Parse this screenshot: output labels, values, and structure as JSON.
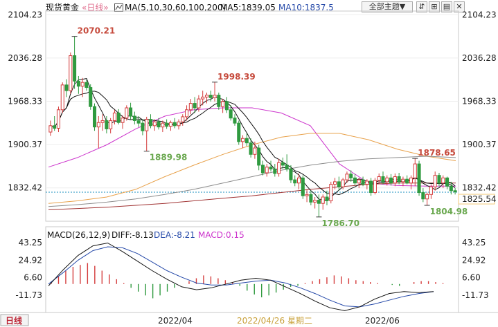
{
  "header": {
    "instrument": "现货黄金",
    "period": "«日线»",
    "ma_icon": "ma-indicator-icon",
    "ma_title": "MA(5,10,30,60,100,200)",
    "ma5": "MA5:1839.05",
    "ma10": "MA10:1837.5",
    "theme_button": "全部主题▼",
    "toolbar_icons": [
      "resize-icon",
      "zoom-in-icon",
      "settings-icon",
      "close-icon"
    ]
  },
  "macd_header": {
    "name": "MACD(26,12,9)",
    "diff": "DIFF:-8.13",
    "dea": "DEA:-8.21",
    "macd": "MACD:0.15"
  },
  "footer": {
    "period_tab": "日线",
    "dates": [
      "2022/04",
      "2022/04/26 星期二",
      "2022/06"
    ]
  },
  "colors": {
    "up": "#d43c3c",
    "down": "#2f9a3f",
    "ma5": "#111111",
    "ma10": "#111111",
    "ma30": "#cc33cc",
    "ma60": "#e8a14a",
    "ma100": "#8c8c8c",
    "ma200": "#a03232",
    "macd_blue": "#2448a8",
    "magenta": "#cc33cc",
    "current_price": "#1a8fbf"
  },
  "chart_data": [
    {
      "type": "candlestick",
      "title": "现货黄金",
      "price_axis_ticks": [
        "2104.23",
        "2036.28",
        "1968.33",
        "1900.37",
        "1832.42"
      ],
      "ylim": [
        1780,
        2110
      ],
      "current_price": 1825.54,
      "current_price_label": "1825.54",
      "annotations": [
        {
          "label": "2070.21",
          "value": 2070.21,
          "kind": "high",
          "index": 6
        },
        {
          "label": "1998.39",
          "value": 1998.39,
          "kind": "high",
          "index": 41
        },
        {
          "label": "1889.98",
          "value": 1889.98,
          "kind": "low",
          "index": 24
        },
        {
          "label": "1786.70",
          "value": 1786.7,
          "kind": "low",
          "index": 67
        },
        {
          "label": "1878.65",
          "value": 1878.65,
          "kind": "high",
          "index": 91
        },
        {
          "label": "1804.98",
          "value": 1804.98,
          "kind": "low",
          "index": 94
        }
      ],
      "candles": [
        {
          "o": 1920,
          "h": 1938,
          "l": 1914,
          "c": 1930
        },
        {
          "o": 1930,
          "h": 1945,
          "l": 1922,
          "c": 1926
        },
        {
          "o": 1926,
          "h": 1960,
          "l": 1920,
          "c": 1955
        },
        {
          "o": 1955,
          "h": 1998,
          "l": 1950,
          "c": 1994
        },
        {
          "o": 1994,
          "h": 2003,
          "l": 1975,
          "c": 1985
        },
        {
          "o": 1985,
          "h": 2045,
          "l": 1980,
          "c": 2040
        },
        {
          "o": 2040,
          "h": 2070.21,
          "l": 1988,
          "c": 2000
        },
        {
          "o": 2000,
          "h": 2008,
          "l": 1980,
          "c": 1992
        },
        {
          "o": 1992,
          "h": 2005,
          "l": 1975,
          "c": 1998
        },
        {
          "o": 1998,
          "h": 2002,
          "l": 1985,
          "c": 1990
        },
        {
          "o": 1990,
          "h": 1995,
          "l": 1955,
          "c": 1960
        },
        {
          "o": 1960,
          "h": 1965,
          "l": 1922,
          "c": 1928
        },
        {
          "o": 1928,
          "h": 1945,
          "l": 1895,
          "c": 1935
        },
        {
          "o": 1935,
          "h": 1948,
          "l": 1922,
          "c": 1938
        },
        {
          "o": 1938,
          "h": 1945,
          "l": 1918,
          "c": 1925
        },
        {
          "o": 1925,
          "h": 1942,
          "l": 1918,
          "c": 1938
        },
        {
          "o": 1938,
          "h": 1955,
          "l": 1932,
          "c": 1950
        },
        {
          "o": 1950,
          "h": 1956,
          "l": 1932,
          "c": 1935
        },
        {
          "o": 1935,
          "h": 1946,
          "l": 1925,
          "c": 1942
        },
        {
          "o": 1942,
          "h": 1962,
          "l": 1938,
          "c": 1958
        },
        {
          "o": 1958,
          "h": 1966,
          "l": 1940,
          "c": 1945
        },
        {
          "o": 1945,
          "h": 1952,
          "l": 1932,
          "c": 1938
        },
        {
          "o": 1938,
          "h": 1945,
          "l": 1928,
          "c": 1934
        },
        {
          "o": 1934,
          "h": 1940,
          "l": 1915,
          "c": 1922
        },
        {
          "o": 1922,
          "h": 1944,
          "l": 1889.98,
          "c": 1940
        },
        {
          "o": 1940,
          "h": 1948,
          "l": 1926,
          "c": 1930
        },
        {
          "o": 1930,
          "h": 1940,
          "l": 1922,
          "c": 1936
        },
        {
          "o": 1936,
          "h": 1942,
          "l": 1924,
          "c": 1928
        },
        {
          "o": 1928,
          "h": 1938,
          "l": 1920,
          "c": 1934
        },
        {
          "o": 1934,
          "h": 1940,
          "l": 1925,
          "c": 1929
        },
        {
          "o": 1929,
          "h": 1938,
          "l": 1922,
          "c": 1935
        },
        {
          "o": 1935,
          "h": 1942,
          "l": 1926,
          "c": 1930
        },
        {
          "o": 1930,
          "h": 1940,
          "l": 1924,
          "c": 1936
        },
        {
          "o": 1936,
          "h": 1948,
          "l": 1930,
          "c": 1944
        },
        {
          "o": 1944,
          "h": 1962,
          "l": 1938,
          "c": 1955
        },
        {
          "o": 1955,
          "h": 1972,
          "l": 1948,
          "c": 1965
        },
        {
          "o": 1965,
          "h": 1975,
          "l": 1950,
          "c": 1958
        },
        {
          "o": 1958,
          "h": 1978,
          "l": 1952,
          "c": 1972
        },
        {
          "o": 1972,
          "h": 1985,
          "l": 1962,
          "c": 1975
        },
        {
          "o": 1975,
          "h": 1982,
          "l": 1965,
          "c": 1978
        },
        {
          "o": 1978,
          "h": 1985,
          "l": 1968,
          "c": 1974
        },
        {
          "o": 1974,
          "h": 1998.39,
          "l": 1968,
          "c": 1978
        },
        {
          "o": 1978,
          "h": 1982,
          "l": 1955,
          "c": 1960
        },
        {
          "o": 1960,
          "h": 1972,
          "l": 1950,
          "c": 1968
        },
        {
          "o": 1968,
          "h": 1975,
          "l": 1950,
          "c": 1955
        },
        {
          "o": 1955,
          "h": 1962,
          "l": 1938,
          "c": 1942
        },
        {
          "o": 1942,
          "h": 1948,
          "l": 1930,
          "c": 1934
        },
        {
          "o": 1934,
          "h": 1938,
          "l": 1900,
          "c": 1905
        },
        {
          "o": 1905,
          "h": 1915,
          "l": 1895,
          "c": 1910
        },
        {
          "o": 1910,
          "h": 1918,
          "l": 1898,
          "c": 1903
        },
        {
          "o": 1903,
          "h": 1910,
          "l": 1880,
          "c": 1885
        },
        {
          "o": 1885,
          "h": 1905,
          "l": 1878,
          "c": 1895
        },
        {
          "o": 1895,
          "h": 1900,
          "l": 1860,
          "c": 1868
        },
        {
          "o": 1868,
          "h": 1875,
          "l": 1852,
          "c": 1856
        },
        {
          "o": 1856,
          "h": 1870,
          "l": 1850,
          "c": 1865
        },
        {
          "o": 1865,
          "h": 1875,
          "l": 1858,
          "c": 1862
        },
        {
          "o": 1862,
          "h": 1870,
          "l": 1850,
          "c": 1855
        },
        {
          "o": 1855,
          "h": 1878,
          "l": 1850,
          "c": 1872
        },
        {
          "o": 1872,
          "h": 1880,
          "l": 1862,
          "c": 1868
        },
        {
          "o": 1868,
          "h": 1885,
          "l": 1858,
          "c": 1862
        },
        {
          "o": 1862,
          "h": 1868,
          "l": 1840,
          "c": 1845
        },
        {
          "o": 1845,
          "h": 1852,
          "l": 1835,
          "c": 1840
        },
        {
          "o": 1840,
          "h": 1855,
          "l": 1830,
          "c": 1848
        },
        {
          "o": 1848,
          "h": 1852,
          "l": 1815,
          "c": 1820
        },
        {
          "o": 1820,
          "h": 1830,
          "l": 1810,
          "c": 1822
        },
        {
          "o": 1822,
          "h": 1828,
          "l": 1805,
          "c": 1810
        },
        {
          "o": 1810,
          "h": 1818,
          "l": 1800,
          "c": 1813
        },
        {
          "o": 1813,
          "h": 1822,
          "l": 1786.7,
          "c": 1808
        },
        {
          "o": 1808,
          "h": 1822,
          "l": 1798,
          "c": 1818
        },
        {
          "o": 1818,
          "h": 1828,
          "l": 1805,
          "c": 1812
        },
        {
          "o": 1812,
          "h": 1842,
          "l": 1808,
          "c": 1838
        },
        {
          "o": 1838,
          "h": 1848,
          "l": 1830,
          "c": 1842
        },
        {
          "o": 1842,
          "h": 1850,
          "l": 1828,
          "c": 1834
        },
        {
          "o": 1834,
          "h": 1848,
          "l": 1830,
          "c": 1845
        },
        {
          "o": 1845,
          "h": 1858,
          "l": 1840,
          "c": 1854
        },
        {
          "o": 1854,
          "h": 1860,
          "l": 1842,
          "c": 1848
        },
        {
          "o": 1848,
          "h": 1854,
          "l": 1836,
          "c": 1840
        },
        {
          "o": 1840,
          "h": 1848,
          "l": 1832,
          "c": 1845
        },
        {
          "o": 1845,
          "h": 1850,
          "l": 1835,
          "c": 1838
        },
        {
          "o": 1838,
          "h": 1846,
          "l": 1830,
          "c": 1843
        },
        {
          "o": 1843,
          "h": 1848,
          "l": 1820,
          "c": 1825
        },
        {
          "o": 1825,
          "h": 1848,
          "l": 1822,
          "c": 1844
        },
        {
          "o": 1844,
          "h": 1855,
          "l": 1838,
          "c": 1850
        },
        {
          "o": 1850,
          "h": 1858,
          "l": 1838,
          "c": 1842
        },
        {
          "o": 1842,
          "h": 1852,
          "l": 1836,
          "c": 1848
        },
        {
          "o": 1848,
          "h": 1854,
          "l": 1836,
          "c": 1840
        },
        {
          "o": 1840,
          "h": 1855,
          "l": 1835,
          "c": 1850
        },
        {
          "o": 1850,
          "h": 1856,
          "l": 1838,
          "c": 1842
        },
        {
          "o": 1842,
          "h": 1850,
          "l": 1835,
          "c": 1846
        },
        {
          "o": 1846,
          "h": 1852,
          "l": 1838,
          "c": 1840
        },
        {
          "o": 1840,
          "h": 1852,
          "l": 1830,
          "c": 1848
        },
        {
          "o": 1848,
          "h": 1878.65,
          "l": 1835,
          "c": 1870
        },
        {
          "o": 1870,
          "h": 1875,
          "l": 1820,
          "c": 1825
        },
        {
          "o": 1825,
          "h": 1832,
          "l": 1810,
          "c": 1815
        },
        {
          "o": 1815,
          "h": 1825,
          "l": 1804.98,
          "c": 1822
        },
        {
          "o": 1822,
          "h": 1838,
          "l": 1815,
          "c": 1834
        },
        {
          "o": 1834,
          "h": 1858,
          "l": 1828,
          "c": 1852
        },
        {
          "o": 1852,
          "h": 1856,
          "l": 1835,
          "c": 1840
        },
        {
          "o": 1840,
          "h": 1852,
          "l": 1832,
          "c": 1848
        },
        {
          "o": 1848,
          "h": 1850,
          "l": 1830,
          "c": 1835
        },
        {
          "o": 1835,
          "h": 1842,
          "l": 1822,
          "c": 1828
        },
        {
          "o": 1828,
          "h": 1832,
          "l": 1822,
          "c": 1826
        }
      ],
      "ma_series": [
        {
          "name": "MA30",
          "color": "#cc33cc",
          "values": [
            1865,
            1880,
            1900,
            1925,
            1945,
            1955,
            1958,
            1958,
            1950,
            1930,
            1870,
            1840,
            1836,
            1835,
            1835
          ]
        },
        {
          "name": "MA60",
          "color": "#e8a14a",
          "values": [
            1808,
            1812,
            1818,
            1830,
            1850,
            1868,
            1885,
            1900,
            1912,
            1918,
            1918,
            1908,
            1893,
            1882,
            1875
          ]
        },
        {
          "name": "MA100",
          "color": "#8c8c8c",
          "values": [
            1803,
            1806,
            1810,
            1815,
            1822,
            1830,
            1840,
            1850,
            1860,
            1868,
            1874,
            1878,
            1880,
            1882,
            1880
          ]
        },
        {
          "name": "MA200",
          "color": "#a03232",
          "values": [
            1798,
            1800,
            1802,
            1805,
            1808,
            1812,
            1816,
            1820,
            1825,
            1830,
            1834,
            1838,
            1840,
            1840,
            1840
          ]
        }
      ]
    },
    {
      "type": "bar",
      "title": "MACD(26,12,9)",
      "ticks": [
        "43.25",
        "24.92",
        "6.60",
        "-11.73"
      ],
      "ylim": [
        -27,
        47
      ],
      "diff": [
        -2,
        15,
        30,
        40,
        43,
        34,
        24,
        14,
        5,
        -3,
        -6,
        -4,
        0,
        4,
        6,
        4,
        -3,
        -10,
        -18,
        -25,
        -28,
        -24,
        -16,
        -10,
        -8,
        -9,
        -8
      ],
      "dea": [
        0,
        12,
        25,
        35,
        39,
        38,
        32,
        23,
        14,
        7,
        1,
        -1,
        -1,
        1,
        3,
        4,
        1,
        -4,
        -10,
        -17,
        -23,
        -24,
        -21,
        -17,
        -13,
        -10,
        -8
      ],
      "histogram": [
        1,
        8,
        14,
        18,
        20,
        22,
        19,
        14,
        10,
        5,
        1,
        -4,
        -8,
        -12,
        -15,
        -12,
        -8,
        -4,
        0,
        3,
        6,
        9,
        8,
        6,
        4,
        2,
        -2,
        -7,
        -11,
        -14,
        -12,
        -9,
        -6,
        -3,
        -2,
        1,
        3,
        5,
        7,
        9,
        8,
        6,
        4,
        3,
        2,
        1,
        0,
        -1,
        -2,
        0,
        2,
        3,
        3,
        2,
        1,
        0
      ]
    }
  ]
}
